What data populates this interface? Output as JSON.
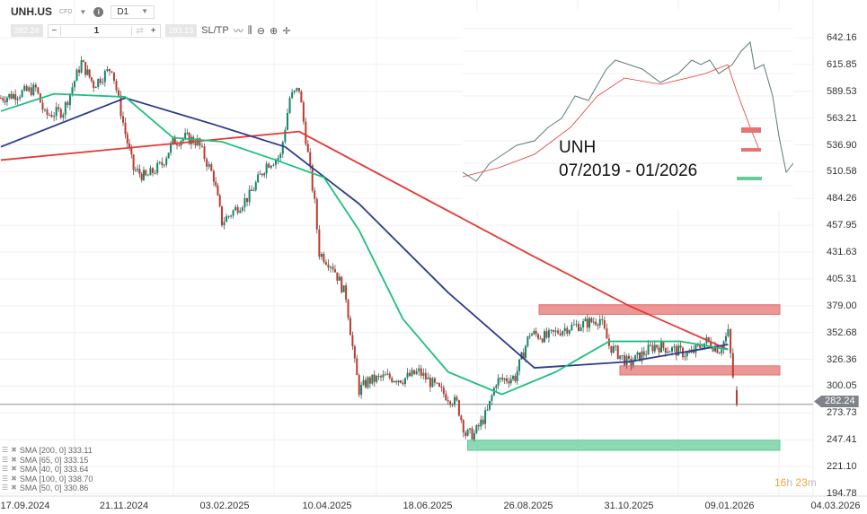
{
  "toolbar": {
    "symbol": "UNH.US",
    "type": "CFD",
    "timeframe": "D1",
    "bid": "282.24",
    "quantity": "1",
    "ask": "283.13",
    "sltp": "SL/TP",
    "minus": "−",
    "plus": "+"
  },
  "legend": [
    {
      "label": "SMA [200, 0] 333.11"
    },
    {
      "label": "SMA [65, 0] 333.15"
    },
    {
      "label": "SMA [40, 0] 333.64"
    },
    {
      "label": "SMA [100, 0] 338.70"
    },
    {
      "label": "SMA [50, 0] 330.86"
    }
  ],
  "timer": {
    "h": "16",
    "hu": "h",
    "m": "23",
    "mu": "m"
  },
  "inset": {
    "line1": "UNH",
    "line2": "07/2019 - 01/2026"
  },
  "colors": {
    "up": "#0a8a6a",
    "down": "#c0392b",
    "sma_red": "#e53935",
    "sma_blue": "#2e3a8c",
    "sma_green": "#1fbf7f",
    "zone_red": "#e57373",
    "zone_green": "#66cc99"
  },
  "chart_data": {
    "type": "candlestick",
    "x_ticks": [
      "17.09.2024",
      "21.11.2024",
      "03.02.2025",
      "10.04.2025",
      "18.06.2025",
      "26.08.2025",
      "31.10.2025",
      "09.01.2026",
      "04.03.2026"
    ],
    "y_ticks": [
      "642.16",
      "615.85",
      "589.53",
      "563.21",
      "536.90",
      "510.58",
      "484.26",
      "457.95",
      "431.63",
      "405.31",
      "379.00",
      "352.68",
      "326.36",
      "300.05",
      "273.73",
      "247.41",
      "221.10",
      "194.78"
    ],
    "ylim": [
      194.78,
      642.16
    ],
    "current_price": "282.24",
    "close": [
      [
        "01.09.2024",
        583
      ],
      [
        "12.09.2024",
        587
      ],
      [
        "24.09.2024",
        592
      ],
      [
        "30.09.2024",
        566
      ],
      [
        "12.10.2024",
        570
      ],
      [
        "24.10.2024",
        618
      ],
      [
        "01.11.2024",
        596
      ],
      [
        "13.11.2024",
        613
      ],
      [
        "22.11.2024",
        548
      ],
      [
        "28.11.2024",
        513
      ],
      [
        "07.12.2024",
        505
      ],
      [
        "19.12.2024",
        518
      ],
      [
        "27.12.2024",
        540
      ],
      [
        "05.01.2025",
        544
      ],
      [
        "14.01.2025",
        540
      ],
      [
        "26.01.2025",
        505
      ],
      [
        "01.02.2025",
        461
      ],
      [
        "10.02.2025",
        474
      ],
      [
        "19.02.2025",
        487
      ],
      [
        "02.03.2025",
        518
      ],
      [
        "11.03.2025",
        526
      ],
      [
        "17.03.2025",
        583
      ],
      [
        "23.03.2025",
        592
      ],
      [
        "02.04.2025",
        479
      ],
      [
        "05.04.2025",
        431
      ],
      [
        "14.04.2025",
        418
      ],
      [
        "23.04.2025",
        388
      ],
      [
        "29.04.2025",
        322
      ],
      [
        "02.05.2025",
        296
      ],
      [
        "08.05.2025",
        305
      ],
      [
        "20.05.2025",
        309
      ],
      [
        "01.06.2025",
        307
      ],
      [
        "12.06.2025",
        314
      ],
      [
        "26.06.2025",
        296
      ],
      [
        "08.07.2025",
        283
      ],
      [
        "14.07.2025",
        253
      ],
      [
        "20.07.2025",
        253
      ],
      [
        "29.07.2025",
        275
      ],
      [
        "04.08.2025",
        305
      ],
      [
        "17.08.2025",
        309
      ],
      [
        "27.08.2025",
        352
      ],
      [
        "07.09.2025",
        348
      ],
      [
        "19.09.2025",
        357
      ],
      [
        "01.10.2025",
        361
      ],
      [
        "12.10.2025",
        366
      ],
      [
        "18.10.2025",
        340
      ],
      [
        "31.10.2025",
        322
      ],
      [
        "09.11.2025",
        331
      ],
      [
        "18.11.2025",
        340
      ],
      [
        "30.11.2025",
        336
      ],
      [
        "12.12.2025",
        331
      ],
      [
        "24.12.2025",
        344
      ],
      [
        "02.01.2026",
        336
      ],
      [
        "08.01.2026",
        352
      ],
      [
        "12.01.2026",
        288
      ]
    ],
    "series": [
      {
        "name": "SMA [200, 0]",
        "color": "red",
        "values": [
          [
            "01.09.2024",
            522
          ],
          [
            "23.03.2025",
            550
          ],
          [
            "30.08.2025",
            427
          ],
          [
            "31.10.2025",
            379
          ],
          [
            "08.01.2026",
            336
          ]
        ]
      },
      {
        "name": "SMA [100, 0]",
        "color": "blue",
        "values": [
          [
            "01.09.2024",
            535
          ],
          [
            "22.11.2024",
            583
          ],
          [
            "26.01.2025",
            557
          ],
          [
            "14.03.2025",
            535
          ],
          [
            "02.05.2025",
            479
          ],
          [
            "02.07.2025",
            392
          ],
          [
            "30.08.2025",
            318
          ],
          [
            "31.10.2025",
            324
          ],
          [
            "08.01.2026",
            341
          ]
        ]
      },
      {
        "name": "SMA [50, 0]",
        "color": "green",
        "values": [
          [
            "01.09.2024",
            570
          ],
          [
            "06.10.2024",
            587
          ],
          [
            "22.11.2024",
            584
          ],
          [
            "27.12.2024",
            544
          ],
          [
            "01.02.2025",
            540
          ],
          [
            "08.03.2025",
            522
          ],
          [
            "08.04.2025",
            505
          ],
          [
            "02.05.2025",
            453
          ],
          [
            "01.06.2025",
            366
          ],
          [
            "02.07.2025",
            314
          ],
          [
            "08.08.2025",
            292
          ],
          [
            "13.09.2025",
            314
          ],
          [
            "18.10.2025",
            344
          ],
          [
            "06.12.2025",
            344
          ],
          [
            "08.01.2026",
            336
          ]
        ]
      }
    ],
    "zones": [
      {
        "color": "red",
        "from": "26.08.2025",
        "to": "04.03.2026",
        "low": 370.5,
        "high": 380
      },
      {
        "color": "red",
        "from": "18.10.2025",
        "to": "04.03.2026",
        "low": 311,
        "high": 320
      },
      {
        "color": "green",
        "from": "08.07.2025",
        "to": "04.03.2026",
        "low": 237,
        "high": 247
      }
    ]
  }
}
